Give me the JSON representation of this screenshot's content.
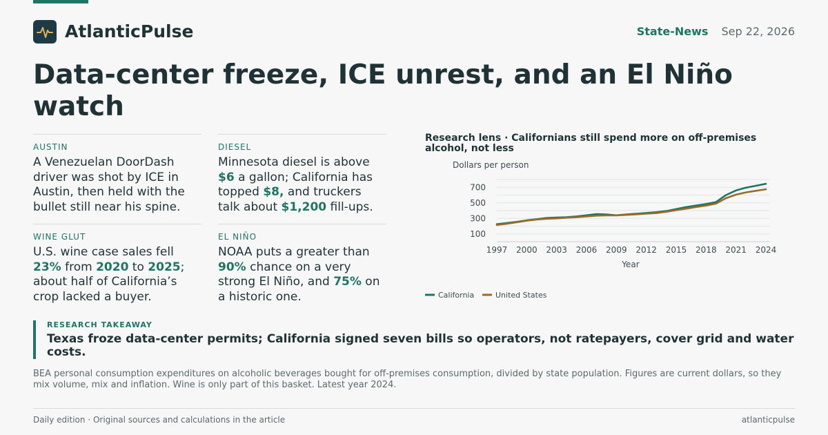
{
  "header": {
    "brand": "AtlanticPulse",
    "logo_icon": "pulse-line-icon",
    "section": "State-News",
    "date": "Sep 22, 2026"
  },
  "headline": "Data-center freeze, ICE unrest, and an El Niño watch",
  "briefs": [
    {
      "kicker": "AUSTIN",
      "body": [
        {
          "t": "A Venezuelan DoorDash driver was shot by ICE in Austin, then held with the bullet still near his spine."
        }
      ]
    },
    {
      "kicker": "DIESEL",
      "body": [
        {
          "t": "Minnesota diesel is above "
        },
        {
          "t": "$6",
          "hl": true
        },
        {
          "t": " a gallon; California has topped "
        },
        {
          "t": "$8,",
          "hl": true
        },
        {
          "t": " and truckers talk about "
        },
        {
          "t": "$1,200",
          "hl": true
        },
        {
          "t": " fill-ups."
        }
      ]
    },
    {
      "kicker": "WINE GLUT",
      "body": [
        {
          "t": "U.S. wine case sales fell "
        },
        {
          "t": "23%",
          "hl": true
        },
        {
          "t": " from "
        },
        {
          "t": "2020",
          "hl": true
        },
        {
          "t": " to "
        },
        {
          "t": "2025",
          "hl": true
        },
        {
          "t": "; about half of California’s crop lacked a buyer."
        }
      ]
    },
    {
      "kicker": "EL NIÑO",
      "body": [
        {
          "t": "NOAA puts a greater than "
        },
        {
          "t": "90%",
          "hl": true
        },
        {
          "t": " chance on a very strong El Niño, and "
        },
        {
          "t": "75%",
          "hl": true
        },
        {
          "t": " on a historic one."
        }
      ]
    }
  ],
  "chart_data": {
    "type": "line",
    "title": "Research lens · Californians still spend more on off-premises alcohol, not less",
    "ylabel": "Dollars per person",
    "xlabel": "Year",
    "xlim": [
      1997,
      2024
    ],
    "ylim": [
      0,
      800
    ],
    "x_ticks": [
      1997,
      2000,
      2003,
      2006,
      2009,
      2012,
      2015,
      2018,
      2021,
      2024
    ],
    "y_ticks": [
      100,
      300,
      500,
      700
    ],
    "grid": true,
    "legend_position": "bottom-left",
    "x": [
      1997,
      1998,
      1999,
      2000,
      2001,
      2002,
      2003,
      2004,
      2005,
      2006,
      2007,
      2008,
      2009,
      2010,
      2011,
      2012,
      2013,
      2014,
      2015,
      2016,
      2017,
      2018,
      2019,
      2020,
      2021,
      2022,
      2023,
      2024
    ],
    "series": [
      {
        "name": "California",
        "color": "#1e7566",
        "values": [
          225,
          240,
          255,
          275,
          290,
          305,
          310,
          315,
          325,
          340,
          355,
          350,
          340,
          350,
          360,
          370,
          380,
          395,
          420,
          445,
          465,
          485,
          510,
          600,
          660,
          695,
          720,
          745
        ]
      },
      {
        "name": "United States",
        "color": "#9a6b28",
        "values": [
          215,
          230,
          250,
          270,
          285,
          295,
          300,
          308,
          315,
          325,
          335,
          338,
          338,
          345,
          352,
          360,
          368,
          385,
          405,
          425,
          445,
          465,
          490,
          560,
          605,
          635,
          655,
          675
        ]
      }
    ]
  },
  "takeaway": {
    "label": "RESEARCH TAKEAWAY",
    "text": "Texas froze data-center permits; California signed seven bills so operators, not ratepayers, cover grid and water costs."
  },
  "note": "BEA personal consumption expenditures on alcoholic beverages bought for off-premises consumption, divided by state population. Figures are current dollars, so they mix volume, mix and inflation. Wine is only part of this basket. Latest year 2024.",
  "footer": {
    "left": "Daily edition · Original sources and calculations in the article",
    "right": "atlanticpulse"
  }
}
